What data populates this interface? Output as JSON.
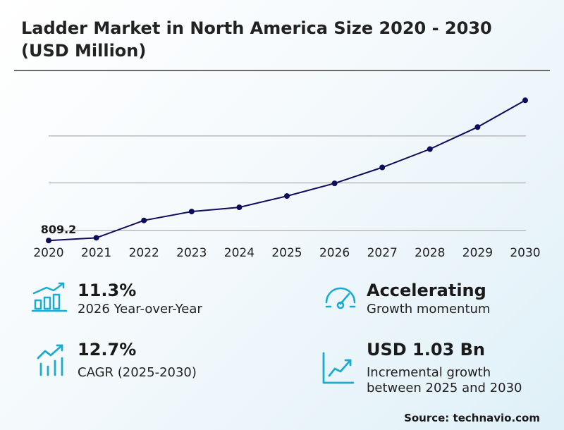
{
  "title": "Ladder Market in North America Size 2020 - 2030 (USD Million)",
  "chart_data": {
    "type": "line",
    "x": [
      "2020",
      "2021",
      "2022",
      "2023",
      "2024",
      "2025",
      "2026",
      "2027",
      "2028",
      "2029",
      "2030"
    ],
    "values": [
      809.2,
      815,
      852,
      871,
      880,
      904,
      931,
      965,
      1004,
      1051,
      1108
    ],
    "data_labels": [
      {
        "index": 0,
        "text": "809.2"
      }
    ],
    "ylim": [
      796,
      1134
    ],
    "gridlines": [
      831,
      932,
      1032
    ],
    "line_color": "#0d0d5c",
    "grid_color": "#9a9a9a"
  },
  "stats": {
    "yoy": {
      "value": "11.3%",
      "label": "2026 Year-over-Year",
      "icon": "bar-chart-growth-icon"
    },
    "momentum": {
      "value": "Accelerating",
      "label": "Growth momentum",
      "icon": "speedometer-icon"
    },
    "cagr": {
      "value": "12.7%",
      "label": "CAGR (2025-2030)",
      "icon": "trend-arrow-bars-icon"
    },
    "incremental": {
      "value": "USD 1.03 Bn",
      "label_line1": "Incremental growth",
      "label_line2": "between 2025 and 2030",
      "icon": "line-chart-up-icon"
    }
  },
  "source": "Source: technavio.com",
  "colors": {
    "accent": "#1aaccf",
    "line": "#0d0d5c"
  }
}
